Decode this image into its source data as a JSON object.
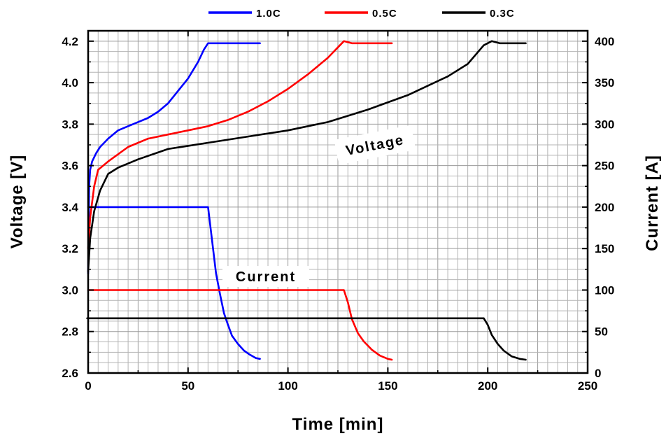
{
  "chart_data": {
    "type": "line",
    "xlabel": "Time [min]",
    "ylabel_left": "Voltage [V]",
    "ylabel_right": "Current [A]",
    "xlim": [
      0,
      250
    ],
    "ylim_left": [
      2.6,
      4.25
    ],
    "ylim_right": [
      0,
      412.5
    ],
    "x_ticks": [
      0,
      50,
      100,
      150,
      200,
      250
    ],
    "y_ticks_left": [
      "2.6",
      "2.8",
      "3.0",
      "3.2",
      "3.4",
      "3.6",
      "3.8",
      "4.0",
      "4.2"
    ],
    "y_ticks_right": [
      "0",
      "50",
      "100",
      "150",
      "200",
      "250",
      "300",
      "350",
      "400"
    ],
    "grid": true,
    "legend_position": "top",
    "annotations": [
      "Voltage",
      "Current"
    ],
    "series": [
      {
        "name": "1.0C",
        "color": "#0000ff",
        "voltage": [
          [
            0,
            3.08
          ],
          [
            0.5,
            3.5
          ],
          [
            1,
            3.58
          ],
          [
            2,
            3.62
          ],
          [
            4,
            3.66
          ],
          [
            6,
            3.69
          ],
          [
            10,
            3.73
          ],
          [
            15,
            3.77
          ],
          [
            20,
            3.79
          ],
          [
            25,
            3.81
          ],
          [
            30,
            3.83
          ],
          [
            35,
            3.86
          ],
          [
            40,
            3.9
          ],
          [
            45,
            3.96
          ],
          [
            50,
            4.02
          ],
          [
            55,
            4.1
          ],
          [
            58,
            4.16
          ],
          [
            60,
            4.19
          ],
          [
            70,
            4.19
          ],
          [
            80,
            4.19
          ],
          [
            86,
            4.19
          ]
        ],
        "current": [
          [
            0,
            200
          ],
          [
            58,
            200
          ],
          [
            60,
            200
          ],
          [
            62,
            160
          ],
          [
            64,
            120
          ],
          [
            66,
            95
          ],
          [
            68,
            72
          ],
          [
            70,
            58
          ],
          [
            72,
            45
          ],
          [
            75,
            35
          ],
          [
            78,
            27
          ],
          [
            81,
            22
          ],
          [
            84,
            18
          ],
          [
            86,
            17
          ]
        ]
      },
      {
        "name": "0.5C",
        "color": "#ff0000",
        "voltage": [
          [
            0,
            3.2
          ],
          [
            1,
            3.35
          ],
          [
            3,
            3.5
          ],
          [
            5,
            3.58
          ],
          [
            10,
            3.62
          ],
          [
            20,
            3.69
          ],
          [
            30,
            3.73
          ],
          [
            40,
            3.75
          ],
          [
            50,
            3.77
          ],
          [
            60,
            3.79
          ],
          [
            70,
            3.82
          ],
          [
            80,
            3.86
          ],
          [
            90,
            3.91
          ],
          [
            100,
            3.97
          ],
          [
            110,
            4.04
          ],
          [
            120,
            4.12
          ],
          [
            125,
            4.17
          ],
          [
            128,
            4.2
          ],
          [
            132,
            4.19
          ],
          [
            140,
            4.19
          ],
          [
            150,
            4.19
          ],
          [
            152,
            4.19
          ]
        ],
        "current": [
          [
            0,
            100
          ],
          [
            50,
            100
          ],
          [
            100,
            100
          ],
          [
            128,
            100
          ],
          [
            130,
            85
          ],
          [
            132,
            65
          ],
          [
            135,
            48
          ],
          [
            138,
            38
          ],
          [
            142,
            28
          ],
          [
            146,
            21
          ],
          [
            150,
            17
          ],
          [
            152,
            16
          ]
        ]
      },
      {
        "name": "0.3C",
        "color": "#000000",
        "voltage": [
          [
            0,
            3.09
          ],
          [
            1,
            3.25
          ],
          [
            3,
            3.38
          ],
          [
            6,
            3.48
          ],
          [
            10,
            3.56
          ],
          [
            15,
            3.59
          ],
          [
            25,
            3.63
          ],
          [
            40,
            3.68
          ],
          [
            60,
            3.71
          ],
          [
            80,
            3.74
          ],
          [
            100,
            3.77
          ],
          [
            110,
            3.79
          ],
          [
            120,
            3.81
          ],
          [
            140,
            3.87
          ],
          [
            160,
            3.94
          ],
          [
            180,
            4.03
          ],
          [
            190,
            4.09
          ],
          [
            198,
            4.18
          ],
          [
            202,
            4.2
          ],
          [
            206,
            4.19
          ],
          [
            219,
            4.19
          ]
        ],
        "current": [
          [
            -0.5,
            66
          ],
          [
            50,
            66
          ],
          [
            100,
            66
          ],
          [
            150,
            66
          ],
          [
            198,
            66
          ],
          [
            200,
            58
          ],
          [
            202,
            46
          ],
          [
            205,
            35
          ],
          [
            208,
            27
          ],
          [
            212,
            20
          ],
          [
            216,
            17
          ],
          [
            219,
            16
          ]
        ]
      }
    ]
  }
}
